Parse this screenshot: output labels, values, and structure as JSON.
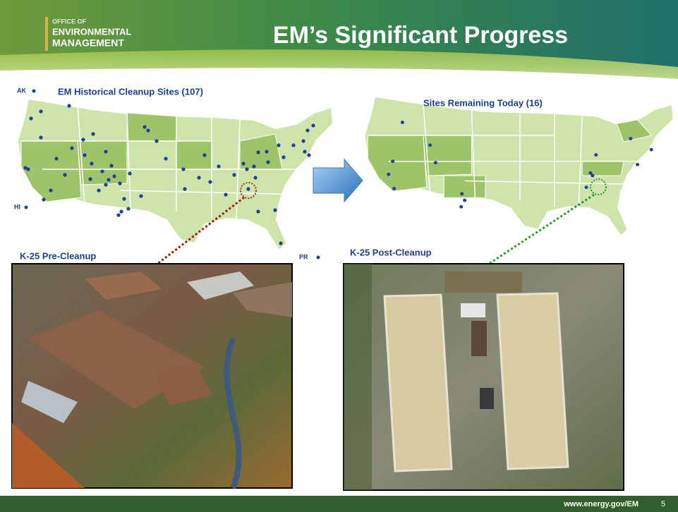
{
  "header": {
    "logo": [
      "OFFICE OF",
      "ENVIRONMENTAL",
      "MANAGEMENT"
    ],
    "title": "EM’s Significant Progress"
  },
  "maps": {
    "historical": {
      "title": "EM Historical Cleanup Sites (107)",
      "labels": [
        "AK",
        "HI",
        "PR"
      ]
    },
    "remaining": {
      "title": "Sites Remaining Today (16)"
    }
  },
  "photos": {
    "pre": {
      "caption": "K-25 Pre-Cleanup"
    },
    "post": {
      "caption": "K-25 Post-Cleanup"
    }
  },
  "footer": {
    "url": "www.energy.gov/EM",
    "page": "5"
  }
}
